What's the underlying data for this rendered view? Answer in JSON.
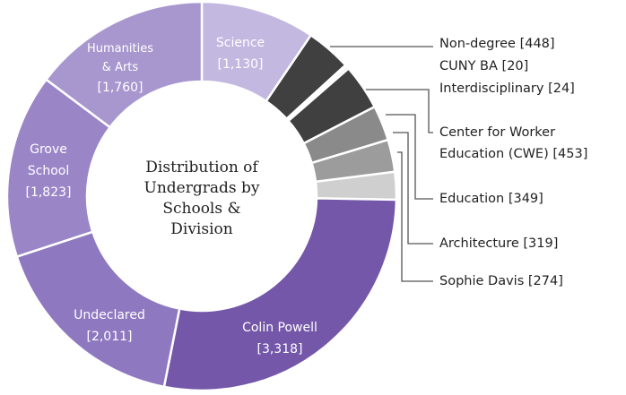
{
  "chart_data": {
    "type": "donut",
    "title": "Distribution of Undergrads by Schools & Division",
    "categories": [
      "Science",
      "Non-degree",
      "CUNY BA",
      "Interdisciplinary",
      "Center for Worker Education (CWE)",
      "Education",
      "Architecture",
      "Sophie Davis",
      "Colin Powell",
      "Undeclared",
      "Grove School",
      "Humanities & Arts"
    ],
    "values": [
      1130,
      448,
      20,
      24,
      453,
      349,
      319,
      274,
      3318,
      2011,
      1823,
      1760
    ],
    "value_labels": [
      "[1,130]",
      "[448]",
      "[20]",
      "[24]",
      "[453]",
      "[349]",
      "[319]",
      "[274]",
      "[3,318]",
      "[2,011]",
      "[1,823]",
      "[1,760]"
    ],
    "colors": [
      "#c3b8e0",
      "#404040",
      "#404040",
      "#404040",
      "#404040",
      "#8a8a8a",
      "#9c9c9c",
      "#cfcfcf",
      "#7457a9",
      "#8e78c0",
      "#9a85c7",
      "#a897cf"
    ]
  }
}
